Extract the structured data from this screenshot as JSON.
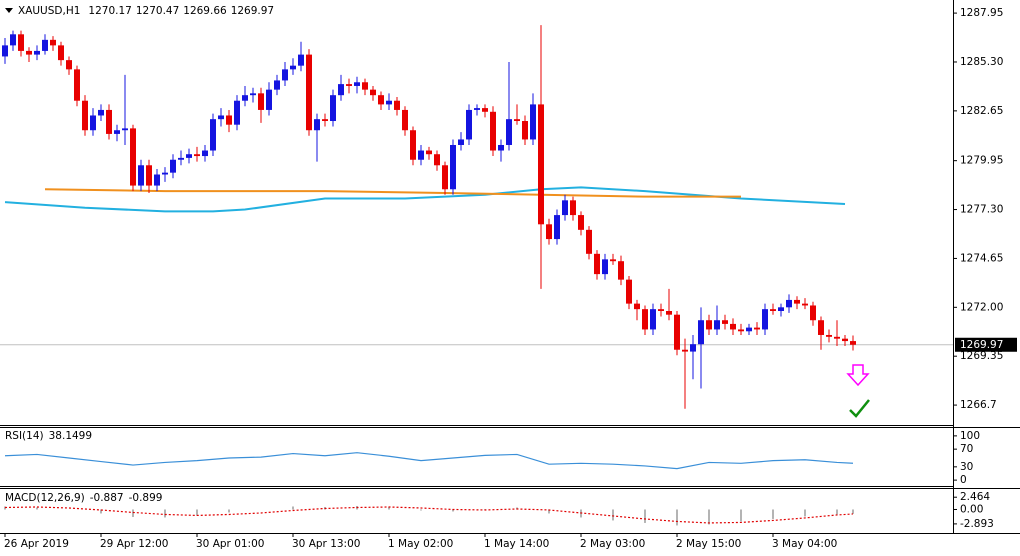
{
  "chart_data": {
    "type": "candlestick",
    "symbol": "XAUUSD,H1",
    "up_color": "#1414e0",
    "down_color": "#e80000",
    "xlim": [
      -0.625,
      118.5
    ],
    "ylim": [
      1265.62,
      1288.66
    ],
    "yticks": [
      1287.95,
      {
        "value": 1285.3,
        "label": "1285.30"
      },
      1282.65,
      1279.95,
      {
        "value": 1277.3,
        "label": "1277.30"
      },
      1274.65,
      {
        "value": 1272,
        "label": "1272.00"
      },
      1269.35,
      1266.7
    ],
    "xticks": [
      {
        "value": 0,
        "label": "26 Apr 2019"
      },
      {
        "value": 12,
        "label": "29 Apr 12:00"
      },
      {
        "value": 24,
        "label": "30 Apr 01:00"
      },
      {
        "value": 36,
        "label": "30 Apr 13:00"
      },
      {
        "value": 48,
        "label": "1 May 02:00"
      },
      {
        "value": 60,
        "label": "1 May 14:00"
      },
      {
        "value": 72,
        "label": "2 May 03:00"
      },
      {
        "value": 84,
        "label": "2 May 15:00"
      },
      {
        "value": 96,
        "label": "3 May 04:00"
      }
    ],
    "candles": [
      [
        1285.6,
        1286.6,
        1285.2,
        1286.2
      ],
      [
        1286.2,
        1287.0,
        1285.9,
        1286.8
      ],
      [
        1286.8,
        1287.0,
        1285.6,
        1285.9
      ],
      [
        1285.9,
        1286.1,
        1285.3,
        1285.7
      ],
      [
        1285.7,
        1286.2,
        1285.4,
        1285.9
      ],
      [
        1285.9,
        1286.8,
        1285.7,
        1286.5
      ],
      [
        1286.5,
        1286.7,
        1285.9,
        1286.2
      ],
      [
        1286.2,
        1286.4,
        1285.1,
        1285.4
      ],
      [
        1285.4,
        1285.6,
        1284.6,
        1284.9
      ],
      [
        1284.9,
        1285.1,
        1282.9,
        1283.2
      ],
      [
        1283.2,
        1283.5,
        1281.3,
        1281.6
      ],
      [
        1281.6,
        1282.8,
        1281.3,
        1282.4
      ],
      [
        1282.4,
        1283.0,
        1282.1,
        1282.7
      ],
      [
        1282.7,
        1283.0,
        1281.1,
        1281.4
      ],
      [
        1281.4,
        1281.9,
        1281.0,
        1281.6
      ],
      [
        1281.6,
        1284.6,
        1280.8,
        1281.7
      ],
      [
        1281.7,
        1281.9,
        1278.3,
        1278.6
      ],
      [
        1278.6,
        1280.0,
        1278.3,
        1279.7
      ],
      [
        1279.7,
        1280.0,
        1278.2,
        1278.6
      ],
      [
        1278.6,
        1279.5,
        1278.3,
        1279.2
      ],
      [
        1279.2,
        1279.6,
        1278.8,
        1279.3
      ],
      [
        1279.3,
        1280.3,
        1279.0,
        1280.0
      ],
      [
        1280.0,
        1280.5,
        1279.7,
        1280.1
      ],
      [
        1280.1,
        1280.6,
        1279.8,
        1280.3
      ],
      [
        1280.3,
        1280.7,
        1279.9,
        1280.2
      ],
      [
        1280.2,
        1280.8,
        1279.9,
        1280.5
      ],
      [
        1280.5,
        1282.5,
        1280.2,
        1282.2
      ],
      [
        1282.2,
        1282.8,
        1281.8,
        1282.4
      ],
      [
        1282.4,
        1282.7,
        1281.5,
        1281.9
      ],
      [
        1281.9,
        1283.5,
        1281.6,
        1283.2
      ],
      [
        1283.2,
        1284.0,
        1282.9,
        1283.5
      ],
      [
        1283.5,
        1283.9,
        1283.1,
        1283.6
      ],
      [
        1283.6,
        1283.9,
        1282.0,
        1282.7
      ],
      [
        1282.7,
        1284.2,
        1282.4,
        1283.8
      ],
      [
        1283.8,
        1284.6,
        1283.5,
        1284.3
      ],
      [
        1284.3,
        1285.3,
        1284.0,
        1284.9
      ],
      [
        1284.9,
        1285.5,
        1284.6,
        1285.1
      ],
      [
        1285.1,
        1286.4,
        1284.8,
        1285.7
      ],
      [
        1285.7,
        1286.0,
        1281.3,
        1281.6
      ],
      [
        1281.6,
        1282.5,
        1279.9,
        1282.2
      ],
      [
        1282.2,
        1282.5,
        1281.8,
        1282.1
      ],
      [
        1282.1,
        1283.8,
        1281.8,
        1283.5
      ],
      [
        1283.5,
        1284.6,
        1283.2,
        1284.1
      ],
      [
        1284.1,
        1284.4,
        1283.6,
        1284.0
      ],
      [
        1284.0,
        1284.5,
        1283.6,
        1284.2
      ],
      [
        1284.2,
        1284.4,
        1283.5,
        1283.8
      ],
      [
        1283.8,
        1284.0,
        1283.2,
        1283.5
      ],
      [
        1283.5,
        1283.7,
        1282.7,
        1283.0
      ],
      [
        1283.0,
        1283.6,
        1282.7,
        1283.2
      ],
      [
        1283.2,
        1283.4,
        1282.4,
        1282.7
      ],
      [
        1282.7,
        1282.9,
        1281.3,
        1281.6
      ],
      [
        1281.6,
        1281.8,
        1279.7,
        1280.0
      ],
      [
        1280.0,
        1280.8,
        1279.7,
        1280.5
      ],
      [
        1280.5,
        1280.7,
        1280.0,
        1280.3
      ],
      [
        1280.3,
        1280.5,
        1279.4,
        1279.7
      ],
      [
        1279.7,
        1279.9,
        1278.1,
        1278.4
      ],
      [
        1278.4,
        1281.1,
        1278.1,
        1280.8
      ],
      [
        1280.8,
        1281.5,
        1280.5,
        1281.1
      ],
      [
        1281.1,
        1283.0,
        1280.8,
        1282.7
      ],
      [
        1282.7,
        1283.0,
        1282.4,
        1282.8
      ],
      [
        1282.8,
        1283.0,
        1282.3,
        1282.6
      ],
      [
        1282.6,
        1282.9,
        1280.2,
        1280.5
      ],
      [
        1280.5,
        1281.1,
        1279.9,
        1280.8
      ],
      [
        1280.8,
        1285.3,
        1280.5,
        1282.2
      ],
      [
        1282.2,
        1283.0,
        1281.9,
        1282.1
      ],
      [
        1282.1,
        1282.4,
        1280.8,
        1281.1
      ],
      [
        1281.1,
        1283.6,
        1280.8,
        1283.0
      ],
      [
        1283.0,
        1287.3,
        1273.0,
        1276.5
      ],
      [
        1276.5,
        1276.8,
        1275.4,
        1275.7
      ],
      [
        1275.7,
        1277.3,
        1275.4,
        1277.0
      ],
      [
        1277.0,
        1278.1,
        1276.7,
        1277.8
      ],
      [
        1277.8,
        1278.0,
        1276.7,
        1277.0
      ],
      [
        1277.0,
        1277.2,
        1275.9,
        1276.2
      ],
      [
        1276.2,
        1276.4,
        1274.6,
        1274.9
      ],
      [
        1274.9,
        1275.1,
        1273.5,
        1273.8
      ],
      [
        1273.8,
        1274.9,
        1273.5,
        1274.6
      ],
      [
        1274.6,
        1274.9,
        1274.3,
        1274.5
      ],
      [
        1274.5,
        1274.8,
        1273.2,
        1273.5
      ],
      [
        1273.5,
        1273.7,
        1271.9,
        1272.2
      ],
      [
        1272.2,
        1272.4,
        1271.3,
        1271.9
      ],
      [
        1271.9,
        1272.1,
        1270.5,
        1270.8
      ],
      [
        1270.8,
        1272.2,
        1270.5,
        1271.9
      ],
      [
        1271.9,
        1272.2,
        1271.5,
        1271.8
      ],
      [
        1271.8,
        1273.0,
        1271.3,
        1271.6
      ],
      [
        1271.6,
        1271.8,
        1269.4,
        1269.7
      ],
      [
        1269.7,
        1270.3,
        1266.5,
        1269.6
      ],
      [
        1269.6,
        1270.5,
        1268.1,
        1270.0
      ],
      [
        1270.0,
        1272.0,
        1267.6,
        1271.3
      ],
      [
        1271.3,
        1271.6,
        1270.5,
        1270.8
      ],
      [
        1270.8,
        1272.1,
        1270.5,
        1271.3
      ],
      [
        1271.3,
        1271.6,
        1270.8,
        1271.1
      ],
      [
        1271.1,
        1271.4,
        1270.5,
        1270.8
      ],
      [
        1270.8,
        1271.1,
        1270.5,
        1270.7
      ],
      [
        1270.7,
        1271.1,
        1270.5,
        1270.9
      ],
      [
        1270.9,
        1271.2,
        1270.5,
        1270.8
      ],
      [
        1270.8,
        1272.2,
        1270.5,
        1271.9
      ],
      [
        1271.9,
        1272.2,
        1271.6,
        1271.8
      ],
      [
        1271.8,
        1272.2,
        1271.5,
        1272.0
      ],
      [
        1272.0,
        1272.7,
        1271.7,
        1272.4
      ],
      [
        1272.4,
        1272.6,
        1271.9,
        1272.2
      ],
      [
        1272.2,
        1272.5,
        1271.9,
        1272.1
      ],
      [
        1272.1,
        1272.3,
        1271.0,
        1271.3
      ],
      [
        1271.3,
        1271.5,
        1269.7,
        1270.5
      ],
      [
        1270.5,
        1270.8,
        1270.1,
        1270.4
      ],
      [
        1270.4,
        1271.3,
        1269.9,
        1270.3
      ],
      [
        1270.3,
        1270.5,
        1269.9,
        1270.17
      ],
      [
        1270.17,
        1270.47,
        1269.66,
        1269.97
      ]
    ],
    "lines": [
      {
        "color": "#22b0e0",
        "x": [
          0,
          10,
          20,
          26,
          30,
          40,
          50,
          60,
          67,
          72,
          80,
          92,
          105
        ],
        "values": [
          1277.7,
          1277.4,
          1277.2,
          1277.2,
          1277.3,
          1277.9,
          1277.9,
          1278.1,
          1278.4,
          1278.5,
          1278.3,
          1277.9,
          1277.6
        ]
      },
      {
        "color": "#f0901e",
        "x": [
          5,
          20,
          40,
          55,
          67,
          80,
          92
        ],
        "values": [
          1278.4,
          1278.3,
          1278.3,
          1278.2,
          1278.1,
          1278.0,
          1278.0
        ]
      }
    ],
    "rsi": {
      "name": "RSI(14)",
      "color": "#3a8fd8",
      "ylim": [
        -13.3,
        117.8
      ],
      "yticks": [
        100,
        70,
        30,
        0
      ],
      "x": [
        0,
        4,
        8,
        12,
        16,
        20,
        24,
        28,
        32,
        36,
        40,
        44,
        48,
        52,
        56,
        60,
        64,
        68,
        72,
        76,
        80,
        84,
        88,
        92,
        96,
        100,
        104,
        106
      ],
      "values": [
        55,
        58,
        50,
        42,
        34,
        40,
        44,
        50,
        52,
        60,
        55,
        62,
        54,
        44,
        50,
        56,
        58,
        36,
        38,
        36,
        32,
        26,
        40,
        38,
        44,
        46,
        40,
        38.1499
      ]
    },
    "macd": {
      "name": "MACD(12,26,9)",
      "hist_color": "#b4b4b4",
      "signal_color": "#e00000",
      "ylim": [
        -4.72,
        4.11
      ],
      "yticks": [
        2.464,
        {
          "value": 0,
          "label": "0.00"
        },
        -2.893
      ],
      "x": [
        0,
        4,
        8,
        12,
        16,
        20,
        24,
        28,
        32,
        36,
        40,
        44,
        48,
        52,
        56,
        60,
        64,
        68,
        72,
        76,
        80,
        84,
        88,
        92,
        96,
        100,
        104,
        106
      ],
      "main": [
        0.6,
        0.4,
        0.0,
        -0.8,
        -1.5,
        -1.6,
        -1.2,
        -0.6,
        0.0,
        0.6,
        0.5,
        0.7,
        0.5,
        -0.2,
        -0.4,
        0.1,
        0.4,
        -0.8,
        -1.6,
        -2.2,
        -2.7,
        -3.2,
        -3.0,
        -2.4,
        -1.9,
        -1.4,
        -1.0,
        -0.887
      ],
      "signal": [
        0.4,
        0.5,
        0.3,
        -0.1,
        -0.6,
        -1.0,
        -1.2,
        -1.0,
        -0.7,
        -0.2,
        0.2,
        0.4,
        0.5,
        0.3,
        0.0,
        -0.1,
        0.1,
        -0.1,
        -0.7,
        -1.3,
        -1.9,
        -2.4,
        -2.7,
        -2.6,
        -2.2,
        -1.7,
        -1.1,
        -0.899
      ]
    }
  }
}
